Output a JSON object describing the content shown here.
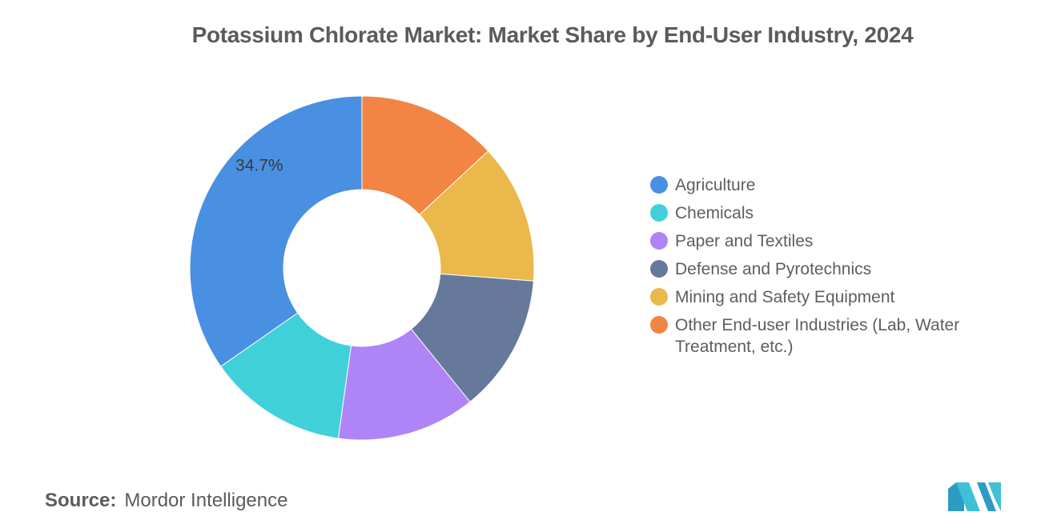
{
  "chart_data": {
    "type": "pie",
    "title": "Potassium Chlorate Market: Market Share by End-User Industry, 2024",
    "categories": [
      "Other End-user Industries (Lab, Water Treatment, etc.)",
      "Mining and Safety Equipment",
      "Defense and Pyrotechnics",
      "Paper and Textiles",
      "Chemicals",
      "Agriculture"
    ],
    "values": [
      13.1,
      13.1,
      13.0,
      13.0,
      13.1,
      34.7
    ],
    "colors": [
      "#f28444",
      "#ebb84c",
      "#67799b",
      "#ae84f6",
      "#40d0da",
      "#4a90e2"
    ],
    "data_labels": [
      "",
      "",
      "",
      "",
      "",
      "34.7%"
    ],
    "donut": true,
    "legend": {
      "position": "right",
      "items": [
        {
          "label": "Agriculture",
          "color": "#4a90e2"
        },
        {
          "label": "Chemicals",
          "color": "#40d0da"
        },
        {
          "label": "Paper and Textiles",
          "color": "#ae84f6"
        },
        {
          "label": "Defense and Pyrotechnics",
          "color": "#67799b"
        },
        {
          "label": "Mining and Safety Equipment",
          "color": "#ebb84c"
        },
        {
          "label": "Other End-user Industries (Lab, Water Treatment, etc.)",
          "color": "#f28444"
        }
      ]
    }
  },
  "source": {
    "label": "Source:",
    "value": "Mordor Intelligence"
  },
  "logo": {
    "name": "mordor-intelligence-logo"
  }
}
